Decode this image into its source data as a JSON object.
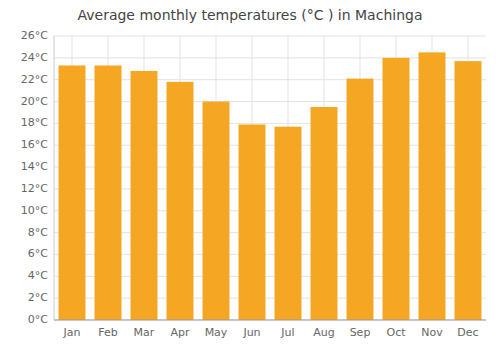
{
  "chart_data": {
    "type": "bar",
    "title": "Average monthly temperatures (°C ) in Machinga",
    "categories": [
      "Jan",
      "Feb",
      "Mar",
      "Apr",
      "May",
      "Jun",
      "Jul",
      "Aug",
      "Sep",
      "Oct",
      "Nov",
      "Dec"
    ],
    "values": [
      23.3,
      23.3,
      22.8,
      21.8,
      20.0,
      17.9,
      17.7,
      19.5,
      22.1,
      24.0,
      24.5,
      23.7
    ],
    "color": "#F5A623",
    "ylim": [
      0,
      26
    ],
    "yticks": [
      {
        "value": 0,
        "label": "0°C"
      },
      {
        "value": 2,
        "label": "2°C"
      },
      {
        "value": 4,
        "label": "4°C"
      },
      {
        "value": 6,
        "label": "6°C"
      },
      {
        "value": 8,
        "label": "8°C"
      },
      {
        "value": 10,
        "label": "10°C"
      },
      {
        "value": 12,
        "label": "12°C"
      },
      {
        "value": 14,
        "label": "14°C"
      },
      {
        "value": 16,
        "label": "16°C"
      },
      {
        "value": 18,
        "label": "18°C"
      },
      {
        "value": 20,
        "label": "20°C"
      },
      {
        "value": 22,
        "label": "22°C"
      },
      {
        "value": 24,
        "label": "24°C"
      },
      {
        "value": 26,
        "label": "26°C"
      }
    ],
    "grid": true
  }
}
